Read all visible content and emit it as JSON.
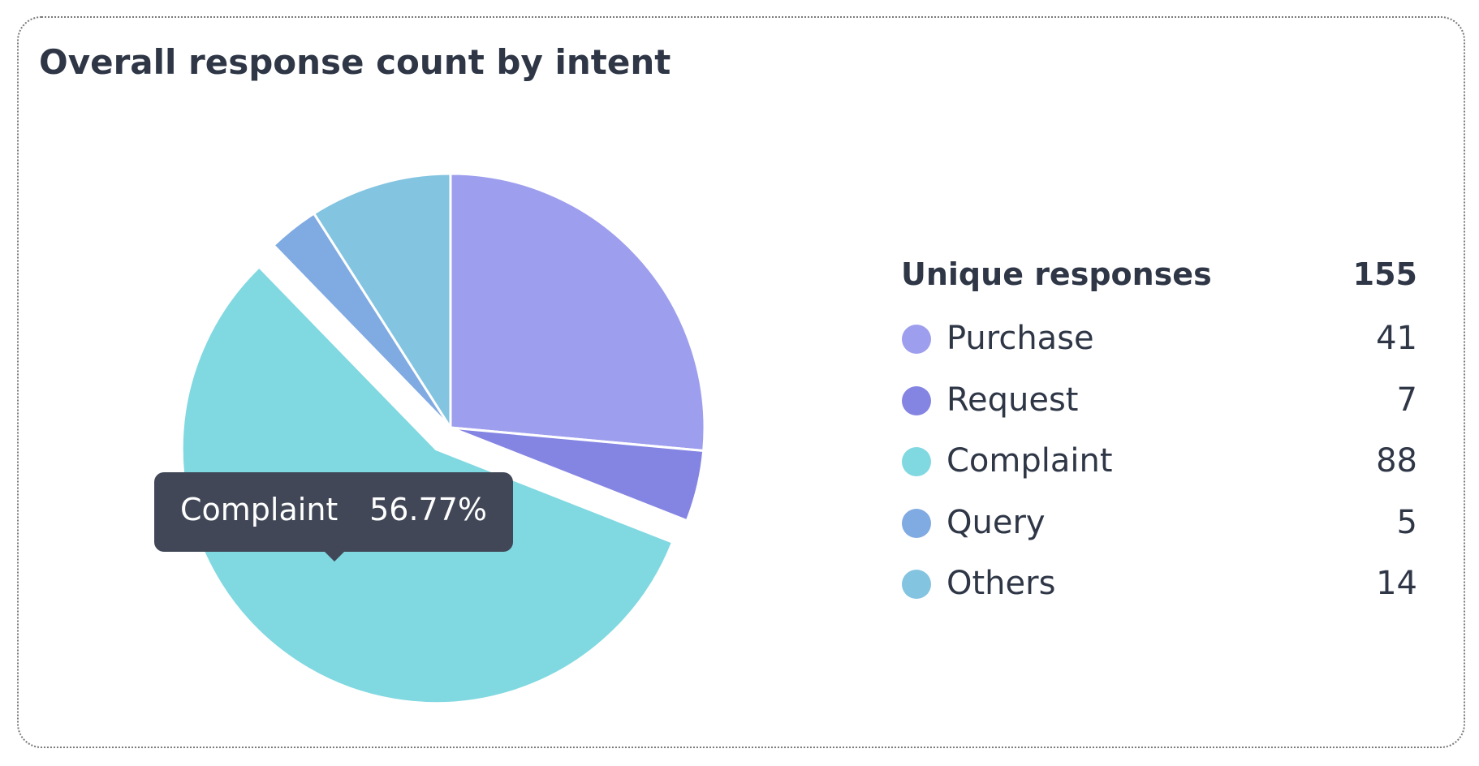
{
  "chart_data": {
    "type": "pie",
    "title": "Overall response count by intent",
    "categories": [
      "Purchase",
      "Request",
      "Complaint",
      "Query",
      "Others"
    ],
    "values": [
      41,
      7,
      88,
      5,
      14
    ],
    "colors": [
      "#9e9eee",
      "#8484e3",
      "#80d8e1",
      "#80aae2",
      "#83c4e1"
    ],
    "highlighted": "Complaint",
    "tooltip": {
      "label": "Complaint",
      "value": "56.77%"
    },
    "legend": {
      "placement": "right",
      "header_label": "Unique responses",
      "header_total": "155"
    }
  }
}
